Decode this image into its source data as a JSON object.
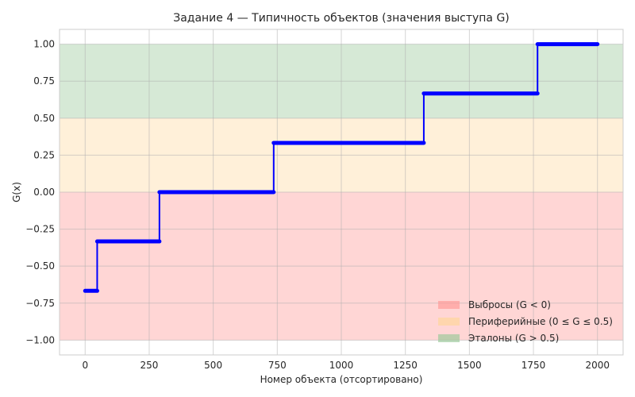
{
  "chart_data": {
    "type": "line",
    "title": "Задание 4 — Типичность объектов (значения выступа G)",
    "xlabel": "Номер объекта (отсортировано)",
    "ylabel": "G(x)",
    "xlim": [
      -100,
      2100
    ],
    "ylim": [
      -1.1,
      1.1
    ],
    "xticks": [
      0,
      250,
      500,
      750,
      1000,
      1250,
      1500,
      1750,
      2000
    ],
    "xtick_labels": [
      "0",
      "250",
      "500",
      "750",
      "1000",
      "1250",
      "1500",
      "1750",
      "2000"
    ],
    "yticks": [
      -1.0,
      -0.75,
      -0.5,
      -0.25,
      0.0,
      0.25,
      0.5,
      0.75,
      1.0
    ],
    "ytick_labels": [
      "−1.00",
      "−0.75",
      "−0.50",
      "−0.25",
      "0.00",
      "0.25",
      "0.50",
      "0.75",
      "1.00"
    ],
    "grid": true,
    "legend_position": "bottom-right",
    "regions": [
      {
        "name": "Выбросы (G < 0)",
        "y_from": -1.0,
        "y_to": 0.0,
        "color": "#ff9896",
        "fill_opacity": 0.4
      },
      {
        "name": "Периферийные (0 ≤ G ≤ 0.5)",
        "y_from": 0.0,
        "y_to": 0.5,
        "color": "#ffd592",
        "fill_opacity": 0.35
      },
      {
        "name": "Эталоны (G > 0.5)",
        "y_from": 0.5,
        "y_to": 1.0,
        "color": "#98c898",
        "fill_opacity": 0.4
      }
    ],
    "series": [
      {
        "color": "#0000ff",
        "segments": [
          {
            "x_start": 0,
            "x_end": 47,
            "y": -0.667
          },
          {
            "x_start": 47,
            "x_end": 290,
            "y": -0.333
          },
          {
            "x_start": 290,
            "x_end": 736,
            "y": 0.0
          },
          {
            "x_start": 736,
            "x_end": 1322,
            "y": 0.333
          },
          {
            "x_start": 1322,
            "x_end": 1766,
            "y": 0.667
          },
          {
            "x_start": 1766,
            "x_end": 2000,
            "y": 1.0
          }
        ]
      }
    ]
  }
}
